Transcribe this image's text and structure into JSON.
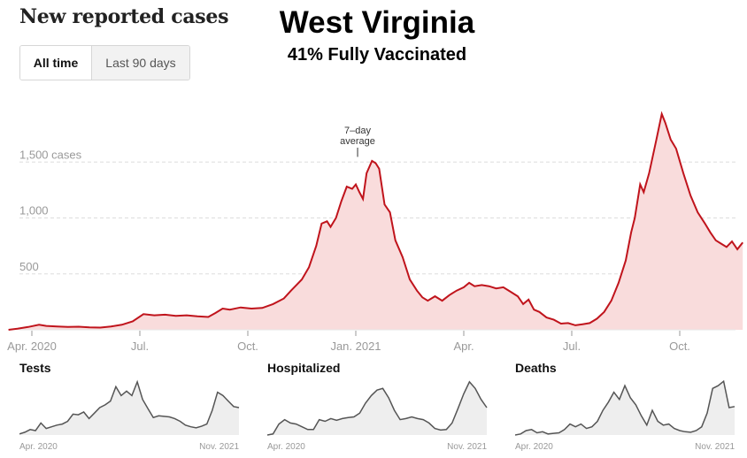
{
  "header": {
    "title": "New reported cases",
    "state": "West Virginia",
    "vaccination": "41% Fully Vaccinated"
  },
  "toggle": {
    "options": [
      {
        "label": "All time",
        "active": true
      },
      {
        "label": "Last 90 days",
        "active": false
      }
    ]
  },
  "colors": {
    "cases_line": "#c0141c",
    "cases_fill": "#f9dcdc",
    "small_line": "#555555",
    "small_fill": "#eeeeee",
    "grid": "#dddddd",
    "axis_text": "#999999"
  },
  "chart_data": [
    {
      "type": "area",
      "title": "New reported cases",
      "ylabel": "cases",
      "ylim": [
        0,
        2000
      ],
      "yticks": [
        {
          "value": 500,
          "label": "500"
        },
        {
          "value": 1000,
          "label": "1,000"
        },
        {
          "value": 1500,
          "label": "1,500 cases"
        }
      ],
      "xlim_months": [
        0,
        20
      ],
      "xticks": [
        {
          "month": 1,
          "label": "Apr. 2020"
        },
        {
          "month": 4,
          "label": "Jul."
        },
        {
          "month": 7,
          "label": "Oct."
        },
        {
          "month": 10,
          "label": "Jan. 2021"
        },
        {
          "month": 13,
          "label": "Apr."
        },
        {
          "month": 16,
          "label": "Jul."
        },
        {
          "month": 19,
          "label": "Oct."
        }
      ],
      "annotation": {
        "text_line1": "7–day",
        "text_line2": "average",
        "month": 10.05,
        "value": 1530
      },
      "series": [
        {
          "name": "7-day average",
          "points": [
            [
              0.35,
              0
            ],
            [
              0.6,
              10
            ],
            [
              0.9,
              25
            ],
            [
              1.2,
              45
            ],
            [
              1.4,
              35
            ],
            [
              1.7,
              30
            ],
            [
              2.0,
              25
            ],
            [
              2.3,
              28
            ],
            [
              2.6,
              22
            ],
            [
              2.9,
              20
            ],
            [
              3.2,
              30
            ],
            [
              3.5,
              45
            ],
            [
              3.8,
              75
            ],
            [
              4.1,
              140
            ],
            [
              4.4,
              130
            ],
            [
              4.7,
              135
            ],
            [
              5.0,
              125
            ],
            [
              5.3,
              130
            ],
            [
              5.6,
              120
            ],
            [
              5.9,
              115
            ],
            [
              6.1,
              150
            ],
            [
              6.3,
              190
            ],
            [
              6.5,
              180
            ],
            [
              6.8,
              200
            ],
            [
              7.1,
              190
            ],
            [
              7.4,
              195
            ],
            [
              7.7,
              230
            ],
            [
              8.0,
              280
            ],
            [
              8.2,
              350
            ],
            [
              8.35,
              400
            ],
            [
              8.5,
              450
            ],
            [
              8.7,
              560
            ],
            [
              8.9,
              750
            ],
            [
              9.05,
              950
            ],
            [
              9.2,
              970
            ],
            [
              9.3,
              920
            ],
            [
              9.45,
              1000
            ],
            [
              9.6,
              1150
            ],
            [
              9.75,
              1280
            ],
            [
              9.9,
              1260
            ],
            [
              10.0,
              1300
            ],
            [
              10.1,
              1230
            ],
            [
              10.2,
              1170
            ],
            [
              10.3,
              1400
            ],
            [
              10.45,
              1510
            ],
            [
              10.55,
              1490
            ],
            [
              10.65,
              1440
            ],
            [
              10.8,
              1120
            ],
            [
              10.95,
              1050
            ],
            [
              11.1,
              800
            ],
            [
              11.3,
              650
            ],
            [
              11.5,
              450
            ],
            [
              11.7,
              350
            ],
            [
              11.85,
              290
            ],
            [
              12.0,
              260
            ],
            [
              12.2,
              300
            ],
            [
              12.4,
              260
            ],
            [
              12.6,
              310
            ],
            [
              12.8,
              350
            ],
            [
              13.0,
              380
            ],
            [
              13.15,
              420
            ],
            [
              13.3,
              390
            ],
            [
              13.5,
              400
            ],
            [
              13.7,
              390
            ],
            [
              13.9,
              370
            ],
            [
              14.1,
              380
            ],
            [
              14.3,
              340
            ],
            [
              14.5,
              300
            ],
            [
              14.65,
              230
            ],
            [
              14.8,
              270
            ],
            [
              14.95,
              180
            ],
            [
              15.1,
              160
            ],
            [
              15.3,
              110
            ],
            [
              15.5,
              90
            ],
            [
              15.7,
              55
            ],
            [
              15.9,
              60
            ],
            [
              16.1,
              40
            ],
            [
              16.3,
              50
            ],
            [
              16.5,
              60
            ],
            [
              16.7,
              100
            ],
            [
              16.9,
              160
            ],
            [
              17.1,
              260
            ],
            [
              17.3,
              420
            ],
            [
              17.5,
              620
            ],
            [
              17.65,
              870
            ],
            [
              17.75,
              1000
            ],
            [
              17.9,
              1300
            ],
            [
              18.0,
              1230
            ],
            [
              18.15,
              1400
            ],
            [
              18.35,
              1700
            ],
            [
              18.5,
              1930
            ],
            [
              18.6,
              1850
            ],
            [
              18.75,
              1700
            ],
            [
              18.9,
              1620
            ],
            [
              19.1,
              1400
            ],
            [
              19.3,
              1200
            ],
            [
              19.5,
              1050
            ],
            [
              19.7,
              950
            ],
            [
              19.85,
              870
            ],
            [
              20.0,
              800
            ],
            [
              20.15,
              770
            ],
            [
              20.3,
              740
            ],
            [
              20.45,
              790
            ],
            [
              20.6,
              720
            ],
            [
              20.75,
              780
            ]
          ]
        }
      ]
    },
    {
      "type": "area",
      "title": "Tests",
      "xlabel_start": "Apr. 2020",
      "xlabel_end": "Nov. 2021",
      "ylim": [
        0,
        1
      ],
      "values": [
        0.02,
        0.05,
        0.1,
        0.08,
        0.22,
        0.12,
        0.15,
        0.18,
        0.2,
        0.25,
        0.38,
        0.37,
        0.42,
        0.3,
        0.4,
        0.5,
        0.55,
        0.62,
        0.88,
        0.72,
        0.8,
        0.72,
        0.97,
        0.65,
        0.48,
        0.32,
        0.35,
        0.34,
        0.33,
        0.3,
        0.25,
        0.18,
        0.15,
        0.13,
        0.16,
        0.2,
        0.45,
        0.78,
        0.72,
        0.62,
        0.52,
        0.5
      ]
    },
    {
      "type": "area",
      "title": "Hospitalized",
      "xlabel_start": "Apr. 2020",
      "xlabel_end": "Nov. 2021",
      "ylim": [
        0,
        1
      ],
      "values": [
        0.0,
        0.02,
        0.2,
        0.28,
        0.22,
        0.2,
        0.15,
        0.1,
        0.1,
        0.28,
        0.25,
        0.3,
        0.27,
        0.3,
        0.32,
        0.33,
        0.4,
        0.58,
        0.72,
        0.82,
        0.85,
        0.68,
        0.45,
        0.28,
        0.3,
        0.33,
        0.3,
        0.28,
        0.22,
        0.12,
        0.09,
        0.1,
        0.22,
        0.48,
        0.75,
        0.97,
        0.85,
        0.65,
        0.5
      ]
    },
    {
      "type": "area",
      "title": "Deaths",
      "xlabel_start": "Apr. 2020",
      "xlabel_end": "Nov. 2021",
      "ylim": [
        0,
        1
      ],
      "values": [
        0.0,
        0.02,
        0.08,
        0.1,
        0.04,
        0.06,
        0.02,
        0.03,
        0.04,
        0.1,
        0.2,
        0.15,
        0.2,
        0.12,
        0.15,
        0.25,
        0.45,
        0.6,
        0.78,
        0.65,
        0.9,
        0.68,
        0.55,
        0.35,
        0.18,
        0.45,
        0.25,
        0.18,
        0.2,
        0.12,
        0.08,
        0.06,
        0.05,
        0.08,
        0.15,
        0.4,
        0.85,
        0.9,
        0.98,
        0.5,
        0.52
      ]
    }
  ]
}
